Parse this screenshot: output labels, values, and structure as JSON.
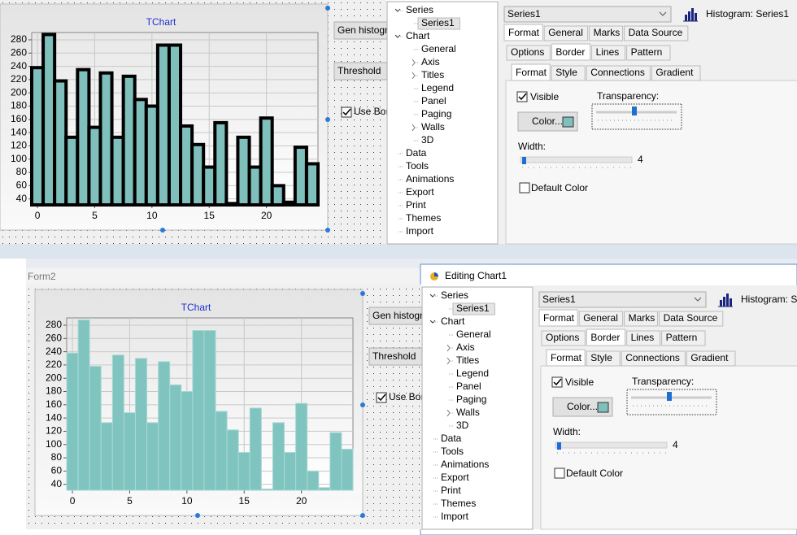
{
  "top": {
    "chart": {
      "type": "bar",
      "title": "TChart",
      "x": [
        0,
        1,
        2,
        3,
        4,
        5,
        6,
        7,
        8,
        9,
        10,
        11,
        12,
        13,
        14,
        15,
        16,
        17,
        18,
        19,
        20,
        21,
        22,
        23,
        24
      ],
      "values": [
        238,
        288,
        218,
        133,
        235,
        148,
        230,
        133,
        225,
        190,
        180,
        272,
        272,
        150,
        122,
        88,
        155,
        33,
        133,
        88,
        162,
        60,
        35,
        118,
        93
      ],
      "xlim": [
        -0.5,
        24.5
      ],
      "xticks": [
        0,
        5,
        10,
        15,
        20
      ],
      "ylim": [
        31,
        291
      ],
      "yticks": [
        40,
        60,
        80,
        100,
        120,
        140,
        160,
        180,
        200,
        220,
        240,
        260,
        280
      ],
      "color": "#7fbfbc",
      "border": true,
      "grid": true
    },
    "buttons": [
      "Gen histogra",
      "Threshold"
    ],
    "checkbox": "Use Bord",
    "editor": {
      "series_select": "Series1",
      "series_label": "Histogram: Series1",
      "tree": [
        {
          "label": "Series",
          "children": [
            {
              "label": "Series1",
              "selected": true
            }
          ]
        },
        {
          "label": "Chart",
          "children": [
            {
              "label": "General"
            },
            {
              "label": "Axis",
              "collapsed": true
            },
            {
              "label": "Titles",
              "collapsed": true
            },
            {
              "label": "Legend"
            },
            {
              "label": "Panel"
            },
            {
              "label": "Paging"
            },
            {
              "label": "Walls",
              "collapsed": true
            },
            {
              "label": "3D"
            }
          ]
        },
        {
          "label": "Data"
        },
        {
          "label": "Tools"
        },
        {
          "label": "Animations"
        },
        {
          "label": "Export"
        },
        {
          "label": "Print"
        },
        {
          "label": "Themes"
        },
        {
          "label": "Import"
        }
      ],
      "tabs": [
        {
          "items": [
            "Format",
            "General",
            "Marks",
            "Data Source"
          ],
          "selected": 0
        },
        {
          "items": [
            "Options",
            "Border",
            "Lines",
            "Pattern"
          ],
          "selected": 1
        },
        {
          "items": [
            "Format",
            "Style",
            "Connections",
            "Gradient"
          ],
          "selected": 0
        }
      ],
      "visible": "Visible",
      "transparency": "Transparency:",
      "color_button": "Color...",
      "width_label": "Width:",
      "width_value": 4,
      "default_color": "Default Color"
    }
  },
  "bottom": {
    "form_title": "Form2",
    "window_title": "Editing Chart1",
    "chart": {
      "type": "bar",
      "title": "TChart",
      "x": [
        0,
        1,
        2,
        3,
        4,
        5,
        6,
        7,
        8,
        9,
        10,
        11,
        12,
        13,
        14,
        15,
        16,
        17,
        18,
        19,
        20,
        21,
        22,
        23,
        24
      ],
      "values": [
        238,
        288,
        218,
        133,
        235,
        148,
        230,
        133,
        225,
        190,
        180,
        272,
        272,
        150,
        122,
        88,
        155,
        33,
        133,
        88,
        162,
        60,
        35,
        118,
        93
      ],
      "xlim": [
        -0.5,
        24.5
      ],
      "xticks": [
        0,
        5,
        10,
        15,
        20
      ],
      "ylim": [
        31,
        291
      ],
      "yticks": [
        40,
        60,
        80,
        100,
        120,
        140,
        160,
        180,
        200,
        220,
        240,
        260,
        280
      ],
      "color": "#80c4c0",
      "border": false,
      "grid": true
    },
    "buttons": [
      "Gen histogra",
      "Threshold"
    ],
    "checkbox": "Use Bord",
    "editor": {
      "series_select": "Series1",
      "series_label": "Histogram: Se",
      "tree": [
        {
          "label": "Series",
          "children": [
            {
              "label": "Series1",
              "selected": true
            }
          ]
        },
        {
          "label": "Chart",
          "children": [
            {
              "label": "General"
            },
            {
              "label": "Axis",
              "collapsed": true
            },
            {
              "label": "Titles",
              "collapsed": true
            },
            {
              "label": "Legend"
            },
            {
              "label": "Panel"
            },
            {
              "label": "Paging"
            },
            {
              "label": "Walls",
              "collapsed": true
            },
            {
              "label": "3D"
            }
          ]
        },
        {
          "label": "Data"
        },
        {
          "label": "Tools"
        },
        {
          "label": "Animations"
        },
        {
          "label": "Export"
        },
        {
          "label": "Print"
        },
        {
          "label": "Themes"
        },
        {
          "label": "Import"
        }
      ],
      "tabs": [
        {
          "items": [
            "Format",
            "General",
            "Marks",
            "Data Source"
          ],
          "selected": 0
        },
        {
          "items": [
            "Options",
            "Border",
            "Lines",
            "Pattern"
          ],
          "selected": 1
        },
        {
          "items": [
            "Format",
            "Style",
            "Connections",
            "Gradient"
          ],
          "selected": 0
        }
      ],
      "visible": "Visible",
      "transparency": "Transparency:",
      "color_button": "Color...",
      "width_label": "Width:",
      "width_value": 4,
      "default_color": "Default Color"
    }
  }
}
